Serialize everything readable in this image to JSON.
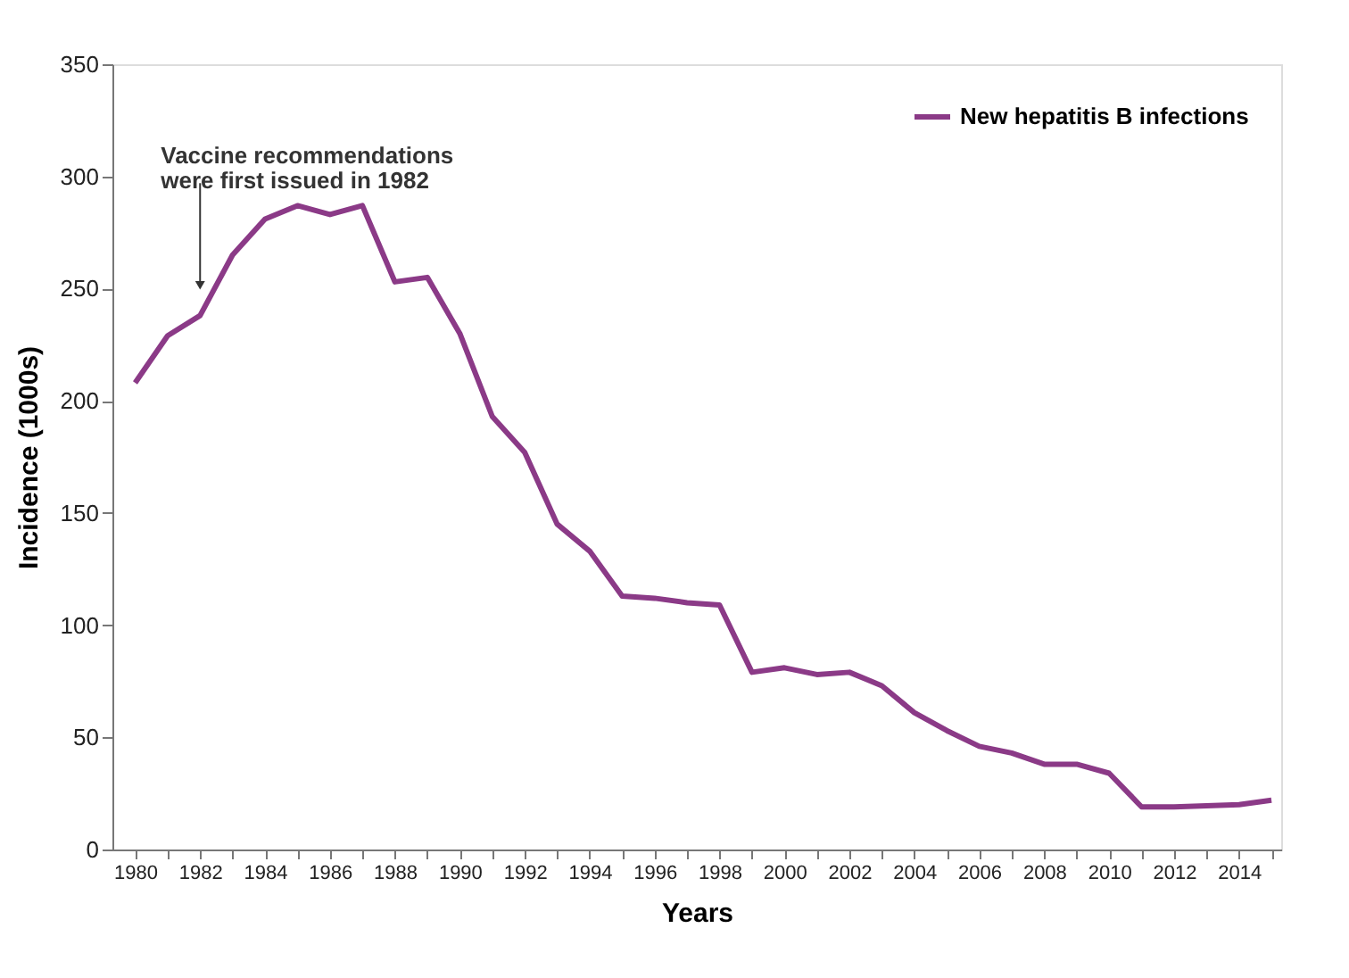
{
  "chart_data": {
    "type": "line",
    "xlabel": "Years",
    "ylabel": "Incidence (1000s)",
    "x": [
      1980,
      1981,
      1982,
      1983,
      1984,
      1985,
      1986,
      1987,
      1988,
      1989,
      1990,
      1991,
      1992,
      1993,
      1994,
      1995,
      1996,
      1997,
      1998,
      1999,
      2000,
      2001,
      2002,
      2003,
      2004,
      2005,
      2006,
      2007,
      2008,
      2009,
      2010,
      2011,
      2012,
      2013,
      2014,
      2015
    ],
    "series": [
      {
        "name": "New hepatitis B infections",
        "color": "#8b3a87",
        "values": [
          208,
          229,
          238,
          265,
          281,
          287,
          283,
          287,
          253,
          255,
          230,
          193,
          177,
          145,
          133,
          113,
          112,
          110,
          109,
          79,
          81,
          78,
          79,
          73,
          61,
          53,
          46,
          43,
          38,
          38,
          34,
          19,
          19,
          19.5,
          20,
          22
        ]
      }
    ],
    "xlim": [
      1979.3,
      2015.3
    ],
    "xticks": [
      1980,
      {
        "value": 1981,
        "label": null
      },
      1982,
      {
        "value": 1983,
        "label": null
      },
      1984,
      {
        "value": 1985,
        "label": null
      },
      1986,
      {
        "value": 1987,
        "label": null
      },
      1988,
      {
        "value": 1989,
        "label": null
      },
      1990,
      {
        "value": 1991,
        "label": null
      },
      1992,
      {
        "value": 1993,
        "label": null
      },
      1994,
      {
        "value": 1995,
        "label": null
      },
      1996,
      {
        "value": 1997,
        "label": null
      },
      1998,
      {
        "value": 1999,
        "label": null
      },
      2000,
      {
        "value": 2001,
        "label": null
      },
      2002,
      {
        "value": 2003,
        "label": null
      },
      2004,
      {
        "value": 2005,
        "label": null
      },
      2006,
      {
        "value": 2007,
        "label": null
      },
      2008,
      {
        "value": 2009,
        "label": null
      },
      2010,
      {
        "value": 2011,
        "label": null
      },
      2012,
      {
        "value": 2013,
        "label": null
      },
      2014,
      {
        "value": 2015,
        "label": null
      }
    ],
    "ylim": [
      0,
      350
    ],
    "yticks": [
      0,
      50,
      100,
      150,
      200,
      250,
      300,
      350
    ],
    "annotations": [
      {
        "text": "Vaccine recommendations\nwere first issued in 1982",
        "x": 1982,
        "y": 248
      }
    ],
    "grid": false,
    "legend": "top right",
    "marker": "none",
    "line_style": "solid"
  }
}
